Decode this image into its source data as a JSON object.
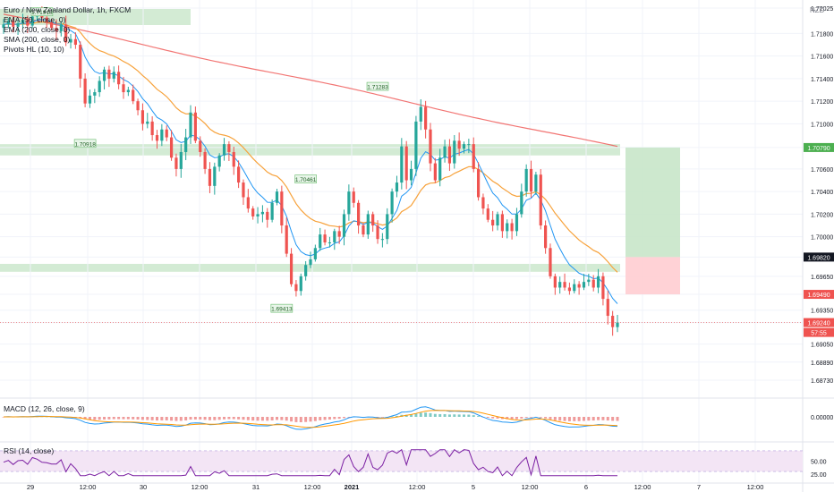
{
  "header": {
    "title": "Euro / New Zealand Dollar, 1h, FXCM"
  },
  "indicators": [
    "EMA (50, close, 0)",
    "EMA (200, close, 0)",
    "SMA (200, close, 0)",
    "Pivots HL (10, 10)"
  ],
  "macd_label": "MACD (12, 26, close, 9)",
  "rsi_label": "RSI (14, close)",
  "currency_label": "NZD",
  "colors": {
    "up": "#26a69a",
    "down": "#ef5350",
    "ema50": "#f7a23b",
    "ema200": "#ef5350",
    "sma200": "#2196f3",
    "zone": "#c8e6c9",
    "target": "#c8e6c9",
    "stop": "#ffcdd2",
    "rsi_fill": "#f3e5f5",
    "rsi_line": "#7b1fa2"
  },
  "chart_data": {
    "type": "candlestick",
    "title": "Euro / New Zealand Dollar, 1h, FXCM",
    "y_ticks": [
      "1.72025",
      "1.71800",
      "1.71600",
      "1.71400",
      "1.71200",
      "1.71000",
      "1.70790",
      "1.70600",
      "1.70400",
      "1.70200",
      "1.70000",
      "1.69820",
      "1.69650",
      "1.69490",
      "1.69350",
      "1.69240",
      "1.69050",
      "1.68890",
      "1.68730"
    ],
    "x_ticks": [
      "29",
      "12:00",
      "30",
      "12:00",
      "31",
      "12:00",
      "2021",
      "12:00",
      "5",
      "12:00",
      "6",
      "12:00",
      "7",
      "12:00"
    ],
    "price_labels": [
      {
        "value": "1.70790",
        "kind": "target"
      },
      {
        "value": "1.69820",
        "kind": "entry"
      },
      {
        "value": "1.69490",
        "kind": "stop"
      },
      {
        "value": "1.69240",
        "kind": "last"
      },
      {
        "value": "57:55",
        "kind": "countdown"
      }
    ],
    "pivots": [
      {
        "label": "1.71918",
        "type": "high"
      },
      {
        "label": "1.70918",
        "type": "low"
      },
      {
        "label": "1.70461",
        "type": "high"
      },
      {
        "label": "1.71283",
        "type": "high"
      },
      {
        "label": "1.69413",
        "type": "low"
      }
    ],
    "macd_ticks": [
      "0.00000"
    ],
    "rsi_ticks": [
      "50.00",
      "25.00"
    ],
    "closes": [
      1.7188,
      1.7191,
      1.7186,
      1.7189,
      1.7192,
      1.7187,
      1.7195,
      1.7198,
      1.7194,
      1.719,
      1.7185,
      1.7182,
      1.7188,
      1.7172,
      1.7175,
      1.717,
      1.714,
      1.7118,
      1.7125,
      1.7128,
      1.7138,
      1.7148,
      1.714,
      1.7146,
      1.7135,
      1.7128,
      1.713,
      1.712,
      1.7112,
      1.71,
      1.7102,
      1.709,
      1.7085,
      1.7095,
      1.7088,
      1.707,
      1.706,
      1.7075,
      1.7088,
      1.711,
      1.7085,
      1.7075,
      1.706,
      1.7045,
      1.7062,
      1.7072,
      1.7082,
      1.7075,
      1.7062,
      1.7048,
      1.7035,
      1.7025,
      1.7018,
      1.702,
      1.7022,
      1.7015,
      1.703,
      1.704,
      1.701,
      1.6985,
      1.6958,
      1.6952,
      1.6965,
      1.6975,
      1.698,
      1.699,
      1.7002,
      1.6995,
      1.6995,
      1.7005,
      1.7,
      1.702,
      1.704,
      1.703,
      1.701,
      1.7002,
      1.702,
      1.701,
      1.6998,
      1.6998,
      1.702,
      1.704,
      1.7048,
      1.708,
      1.705,
      1.706,
      1.7102,
      1.7115,
      1.7095,
      1.7065,
      1.705,
      1.707,
      1.708,
      1.7065,
      1.7085,
      1.7078,
      1.7082,
      1.7082,
      1.706,
      1.7035,
      1.7025,
      1.7015,
      1.701,
      1.702,
      1.7005,
      1.7012,
      1.7005,
      1.702,
      1.704,
      1.706,
      1.704,
      1.7055,
      1.701,
      1.699,
      1.6965,
      1.6955,
      1.696,
      1.6955,
      1.6952,
      1.6958,
      1.6955,
      1.696,
      1.6962,
      1.6955,
      1.6965,
      1.6945,
      1.693,
      1.692,
      1.6924
    ]
  }
}
